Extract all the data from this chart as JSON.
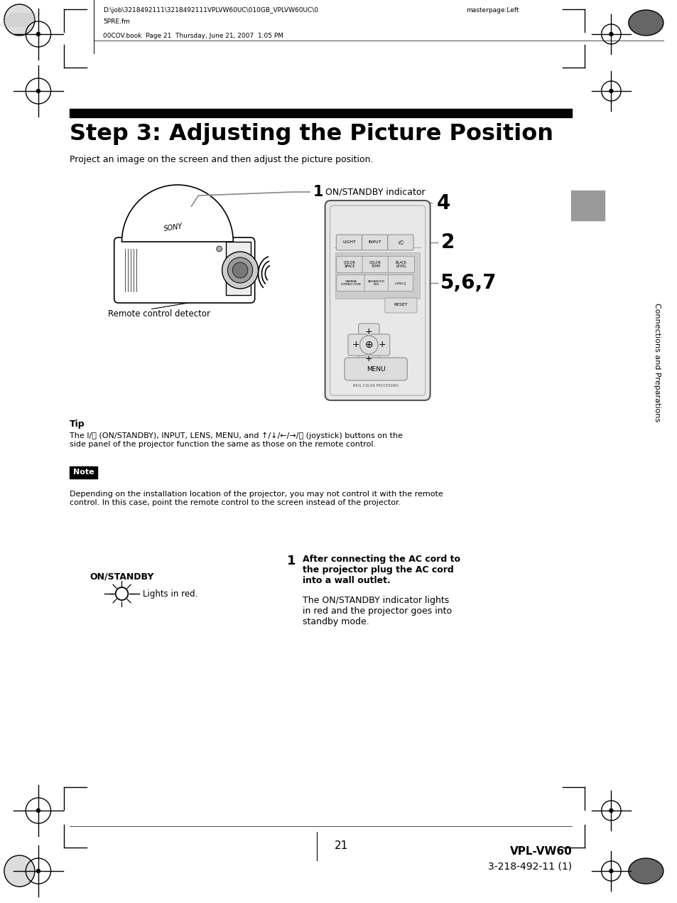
{
  "bg_color": "#ffffff",
  "header_filepath": "D:\\job\\3218492111\\3218492111VPLVW60UC\\010GB_VPLVW60UC\\0\n5PRE.fm",
  "header_masterpage": "masterpage:Left",
  "header_book": "00COV.book  Page 21  Thursday, June 21, 2007  1:05 PM",
  "title": "Step 3: Adjusting the Picture Position",
  "subtitle": "Project an image on the screen and then adjust the picture position.",
  "tip_title": "Tip",
  "tip_text1": "The I/",
  "tip_text2": " (ON/STANDBY), INPUT, LENS, MENU, and ",
  "tip_text3": " (joystick) buttons on the",
  "tip_text4": "side panel of the projector function the same as those on the remote control.",
  "note_label": "Note",
  "note_text": "Depending on the installation location of the projector, you may not control it with the remote\ncontrol. In this case, point the remote control to the screen instead of the projector.",
  "step1_label": "1",
  "step1_bold": "After connecting the AC cord to\nthe projector plug the AC cord\ninto a wall outlet.",
  "step1_normal": "The ON/STANDBY indicator lights\nin red and the projector goes into\nstandby mode.",
  "on_standby_label": "ON/STANDBY",
  "lights_in_red": "Lights in red.",
  "callout1_text": "ON/STANDBY indicator",
  "remote_label": "Remote control detector",
  "side_text": "Connections and Preparations",
  "page_number": "21",
  "model": "VPL-VW60",
  "part_number": "3-218-492-11 (1)",
  "gray_tab_color": "#999999",
  "remote_body_color": "#e8e8e8",
  "remote_edge_color": "#555555",
  "remote_btn_color": "#dddddd",
  "remote_btn_edge": "#888888",
  "remote_section_color": "#cccccc"
}
